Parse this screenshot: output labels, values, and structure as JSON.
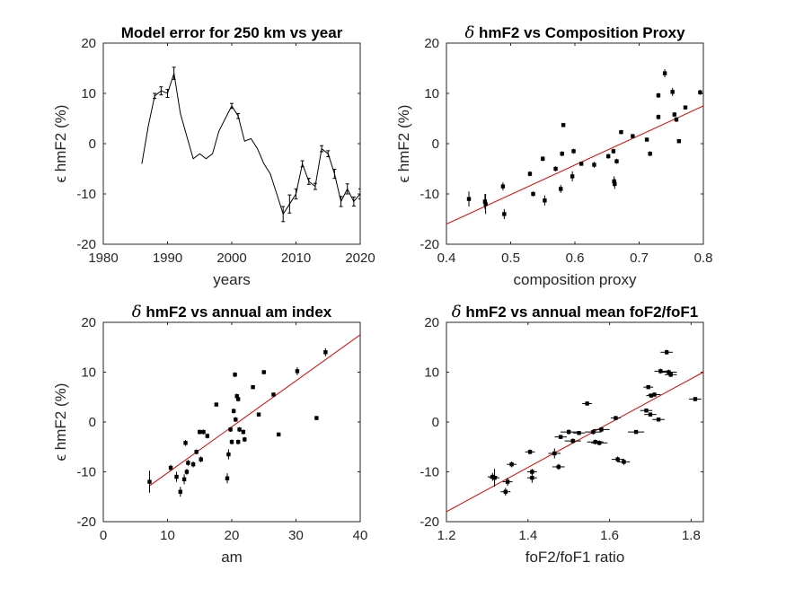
{
  "chart_data": [
    {
      "type": "line",
      "title": "Model error for 250 km vs year",
      "xlabel": "years",
      "ylabel": "ϵ hmF2 (%)",
      "xlim": [
        1980,
        2020
      ],
      "ylim": [
        -20,
        20
      ],
      "xticks": [
        "1980",
        "1990",
        "2000",
        "2010",
        "2020"
      ],
      "yticks": [
        "-20",
        "-10",
        "0",
        "10",
        "20"
      ],
      "series": [
        {
          "x": [
            1986,
            1987,
            1988,
            1989,
            1990,
            1991,
            1992,
            1993,
            1994,
            1995,
            1996,
            1997,
            1998,
            1999,
            2000,
            2001,
            2002,
            2003,
            2004,
            2005,
            2006,
            2007,
            2008,
            2009,
            2010,
            2011,
            2012,
            2013,
            2014,
            2015,
            2016,
            2017,
            2018,
            2019,
            2020
          ],
          "y": [
            -4,
            3.5,
            9.5,
            10.5,
            10,
            14,
            6,
            1.5,
            -3,
            -2,
            -3,
            -2,
            2.5,
            5,
            7.5,
            5.5,
            0.5,
            1,
            -1,
            -4,
            -6,
            -10,
            -14,
            -12,
            -10,
            -4,
            -7.5,
            -8.5,
            -1,
            -2,
            -6,
            -11.5,
            -9,
            -11.5,
            -10
          ],
          "err": [
            0,
            0,
            0.5,
            0.8,
            0.8,
            1.2,
            0,
            0,
            0,
            0,
            0,
            0,
            0,
            0,
            0.5,
            0.5,
            0,
            0,
            0,
            0,
            0,
            0,
            1.5,
            1.8,
            1,
            0.6,
            0.6,
            0.6,
            0.6,
            0.6,
            0.9,
            1,
            1,
            0.9,
            1
          ]
        }
      ],
      "grid": false
    },
    {
      "type": "scatter",
      "title": "hmF2 vs Composition Proxy",
      "title_symbol": "δ",
      "xlabel": "composition proxy",
      "ylabel": "ϵ hmF2 (%)",
      "xlim": [
        0.4,
        0.8
      ],
      "ylim": [
        -20,
        20
      ],
      "xticks": [
        "0.4",
        "0.5",
        "0.6",
        "0.7",
        "0.8"
      ],
      "yticks": [
        "-20",
        "-10",
        "0",
        "10",
        "20"
      ],
      "points": [
        {
          "x": 0.435,
          "y": -11,
          "ey": 1.5
        },
        {
          "x": 0.46,
          "y": -11.5,
          "ey": 1.5
        },
        {
          "x": 0.461,
          "y": -12,
          "ey": 2
        },
        {
          "x": 0.488,
          "y": -8.5,
          "ey": 0.8
        },
        {
          "x": 0.49,
          "y": -14,
          "ey": 1
        },
        {
          "x": 0.53,
          "y": -6,
          "ey": 0.5
        },
        {
          "x": 0.535,
          "y": -10,
          "ey": 0.5
        },
        {
          "x": 0.55,
          "y": -3,
          "ey": 0.5
        },
        {
          "x": 0.553,
          "y": -11.3,
          "ey": 1
        },
        {
          "x": 0.57,
          "y": -5,
          "ey": 0.5
        },
        {
          "x": 0.578,
          "y": -9,
          "ey": 0.8
        },
        {
          "x": 0.58,
          "y": -2,
          "ey": 0.5
        },
        {
          "x": 0.582,
          "y": 3.7,
          "ey": 0.4
        },
        {
          "x": 0.596,
          "y": -6.5,
          "ey": 1
        },
        {
          "x": 0.598,
          "y": -1.5,
          "ey": 0.5
        },
        {
          "x": 0.61,
          "y": -4,
          "ey": 0.4
        },
        {
          "x": 0.63,
          "y": -4.2,
          "ey": 0.6
        },
        {
          "x": 0.652,
          "y": -2.5,
          "ey": 0.5
        },
        {
          "x": 0.66,
          "y": -1.5,
          "ey": 0.5
        },
        {
          "x": 0.661,
          "y": -7.5,
          "ey": 1
        },
        {
          "x": 0.662,
          "y": -8,
          "ey": 1
        },
        {
          "x": 0.665,
          "y": -3.5,
          "ey": 0.5
        },
        {
          "x": 0.672,
          "y": 2.3,
          "ey": 0.4
        },
        {
          "x": 0.69,
          "y": 1.5,
          "ey": 0.4
        },
        {
          "x": 0.712,
          "y": 0.8,
          "ey": 0.4
        },
        {
          "x": 0.717,
          "y": -2,
          "ey": 0.5
        },
        {
          "x": 0.73,
          "y": 9.6,
          "ey": 0.5
        },
        {
          "x": 0.73,
          "y": 5.3,
          "ey": 0.5
        },
        {
          "x": 0.74,
          "y": 14,
          "ey": 0.8
        },
        {
          "x": 0.752,
          "y": 10.3,
          "ey": 0.8
        },
        {
          "x": 0.755,
          "y": 5.8,
          "ey": 0.5
        },
        {
          "x": 0.758,
          "y": 4.8,
          "ey": 0.5
        },
        {
          "x": 0.762,
          "y": 0.5,
          "ey": 0.4
        },
        {
          "x": 0.772,
          "y": 7.2,
          "ey": 0.4
        },
        {
          "x": 0.795,
          "y": 10.2,
          "ey": 0.5
        }
      ],
      "fit": {
        "x": [
          0.4,
          0.8
        ],
        "y": [
          -16,
          7.5
        ]
      },
      "grid": false
    },
    {
      "type": "scatter",
      "title": "hmF2 vs annual am index",
      "title_symbol": "δ",
      "xlabel": "am",
      "ylabel": "ϵ hmF2 (%)",
      "xlim": [
        0,
        40
      ],
      "ylim": [
        -20,
        20
      ],
      "xticks": [
        "0",
        "10",
        "20",
        "30",
        "40"
      ],
      "yticks": [
        "-20",
        "-10",
        "0",
        "10",
        "20"
      ],
      "points": [
        {
          "x": 7.2,
          "y": -12,
          "ey": 2.2
        },
        {
          "x": 10.5,
          "y": -9.2,
          "ey": 0.6
        },
        {
          "x": 11.4,
          "y": -11,
          "ey": 1
        },
        {
          "x": 12,
          "y": -14,
          "ey": 1
        },
        {
          "x": 12.6,
          "y": -11.5,
          "ey": 1
        },
        {
          "x": 12.8,
          "y": -4.2,
          "ey": 0.6
        },
        {
          "x": 13,
          "y": -10,
          "ey": 0.6
        },
        {
          "x": 13.2,
          "y": -8.2,
          "ey": 0.6
        },
        {
          "x": 14,
          "y": -8.5,
          "ey": 0.6
        },
        {
          "x": 14.5,
          "y": -6,
          "ey": 0.5
        },
        {
          "x": 15,
          "y": -2,
          "ey": 0.5
        },
        {
          "x": 15.2,
          "y": -7.5,
          "ey": 0.6
        },
        {
          "x": 15.6,
          "y": -2,
          "ey": 0.5
        },
        {
          "x": 16.2,
          "y": -2.8,
          "ey": 0.5
        },
        {
          "x": 17.6,
          "y": 3.5,
          "ey": 0.4
        },
        {
          "x": 19.3,
          "y": -11.3,
          "ey": 1
        },
        {
          "x": 19.5,
          "y": -6.5,
          "ey": 1
        },
        {
          "x": 19.8,
          "y": -1.5,
          "ey": 0.5
        },
        {
          "x": 20,
          "y": -4,
          "ey": 0.5
        },
        {
          "x": 20.3,
          "y": 2.2,
          "ey": 0.5
        },
        {
          "x": 20.5,
          "y": 9.5,
          "ey": 0.5
        },
        {
          "x": 20.6,
          "y": 0.5,
          "ey": 0.5
        },
        {
          "x": 20.8,
          "y": 5.2,
          "ey": 0.5
        },
        {
          "x": 21,
          "y": 4.6,
          "ey": 0.5
        },
        {
          "x": 21,
          "y": -4,
          "ey": 0.5
        },
        {
          "x": 21.2,
          "y": -1.5,
          "ey": 0.5
        },
        {
          "x": 21.8,
          "y": -2,
          "ey": 0.5
        },
        {
          "x": 22,
          "y": -3.5,
          "ey": 0.5
        },
        {
          "x": 23.3,
          "y": 7,
          "ey": 0.4
        },
        {
          "x": 24.2,
          "y": 1.5,
          "ey": 0.4
        },
        {
          "x": 25,
          "y": 10,
          "ey": 0.4
        },
        {
          "x": 26.5,
          "y": 5.5,
          "ey": 0.4
        },
        {
          "x": 27.3,
          "y": -2.5,
          "ey": 0.4
        },
        {
          "x": 30.2,
          "y": 10.2,
          "ey": 0.8
        },
        {
          "x": 33.2,
          "y": 0.8,
          "ey": 0.4
        },
        {
          "x": 34.6,
          "y": 14,
          "ey": 0.8
        }
      ],
      "fit": {
        "x": [
          7.2,
          40
        ],
        "y": [
          -12.8,
          17.5
        ]
      },
      "grid": false
    },
    {
      "type": "scatter",
      "title": "hmF2 vs annual mean foF2/foF1",
      "title_symbol": "δ",
      "xlabel": "foF2/foF1 ratio",
      "ylabel": "",
      "xlim": [
        1.2,
        1.83
      ],
      "ylim": [
        -20,
        20
      ],
      "xticks": [
        "1.2",
        "1.4",
        "1.6",
        "1.8"
      ],
      "yticks": [
        "-20",
        "-10",
        "0",
        "10",
        "20"
      ],
      "points": [
        {
          "x": 1.313,
          "y": -11,
          "ex": 0.012,
          "ey": 0.8
        },
        {
          "x": 1.318,
          "y": -11.2,
          "ex": 0.012,
          "ey": 1.8
        },
        {
          "x": 1.345,
          "y": -14,
          "ex": 0.012,
          "ey": 0.8
        },
        {
          "x": 1.35,
          "y": -12,
          "ex": 0.012,
          "ey": 0.8
        },
        {
          "x": 1.36,
          "y": -8.5,
          "ex": 0.012,
          "ey": 0.6
        },
        {
          "x": 1.405,
          "y": -6,
          "ex": 0.012,
          "ey": 0.5
        },
        {
          "x": 1.41,
          "y": -11.2,
          "ex": 0.012,
          "ey": 1
        },
        {
          "x": 1.41,
          "y": -10,
          "ex": 0.012,
          "ey": 0.6
        },
        {
          "x": 1.465,
          "y": -6.3,
          "ex": 0.015,
          "ey": 1
        },
        {
          "x": 1.475,
          "y": -9,
          "ex": 0.015,
          "ey": 0.6
        },
        {
          "x": 1.48,
          "y": -3,
          "ex": 0.015,
          "ey": 0.4
        },
        {
          "x": 1.5,
          "y": -2,
          "ex": 0.02,
          "ey": 0.5
        },
        {
          "x": 1.51,
          "y": -3.8,
          "ex": 0.02,
          "ey": 0.5
        },
        {
          "x": 1.525,
          "y": -2.2,
          "ex": 0.015,
          "ey": 0.4
        },
        {
          "x": 1.545,
          "y": 3.7,
          "ex": 0.012,
          "ey": 0.4
        },
        {
          "x": 1.56,
          "y": -2,
          "ex": 0.02,
          "ey": 0.5
        },
        {
          "x": 1.565,
          "y": -4,
          "ex": 0.02,
          "ey": 0.5
        },
        {
          "x": 1.575,
          "y": -4.2,
          "ex": 0.02,
          "ey": 0.5
        },
        {
          "x": 1.58,
          "y": -1.5,
          "ex": 0.02,
          "ey": 0.5
        },
        {
          "x": 1.615,
          "y": 0.8,
          "ex": 0.012,
          "ey": 0.4
        },
        {
          "x": 1.62,
          "y": -7.5,
          "ex": 0.015,
          "ey": 0.6
        },
        {
          "x": 1.635,
          "y": -8,
          "ex": 0.015,
          "ey": 0.6
        },
        {
          "x": 1.665,
          "y": -2,
          "ex": 0.02,
          "ey": 0.4
        },
        {
          "x": 1.69,
          "y": 2.3,
          "ex": 0.015,
          "ey": 0.4
        },
        {
          "x": 1.695,
          "y": 7,
          "ex": 0.012,
          "ey": 0.4
        },
        {
          "x": 1.7,
          "y": 1.5,
          "ex": 0.015,
          "ey": 0.4
        },
        {
          "x": 1.702,
          "y": 5.3,
          "ex": 0.012,
          "ey": 0.4
        },
        {
          "x": 1.71,
          "y": 5.5,
          "ex": 0.015,
          "ey": 0.4
        },
        {
          "x": 1.72,
          "y": 0.5,
          "ex": 0.015,
          "ey": 0.4
        },
        {
          "x": 1.725,
          "y": 10.2,
          "ex": 0.015,
          "ey": 0.5
        },
        {
          "x": 1.74,
          "y": 14,
          "ex": 0.015,
          "ey": 0.5
        },
        {
          "x": 1.745,
          "y": 10,
          "ex": 0.02,
          "ey": 0.5
        },
        {
          "x": 1.75,
          "y": 9.5,
          "ex": 0.015,
          "ey": 0.5
        },
        {
          "x": 1.81,
          "y": 4.6,
          "ex": 0.015,
          "ey": 0.4
        }
      ],
      "fit": {
        "x": [
          1.2,
          1.83
        ],
        "y": [
          -18,
          10
        ]
      },
      "grid": false
    }
  ],
  "colors": {
    "axis": "#262626",
    "data": "#000000",
    "fit": "#e00000",
    "background": "#ffffff"
  }
}
